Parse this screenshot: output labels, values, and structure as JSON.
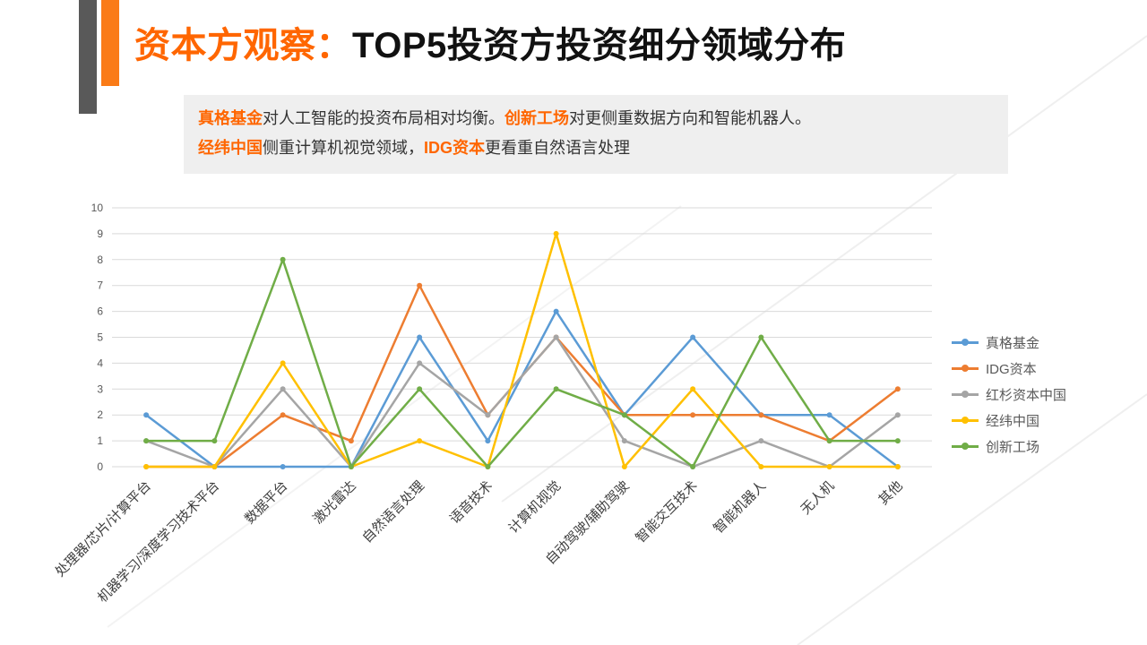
{
  "slide": {
    "title": {
      "highlight": "资本方观察：",
      "rest": "TOP5投资方投资细分领域分布"
    },
    "subtitle": {
      "line1": [
        {
          "text": "真格基金",
          "highlight": true
        },
        {
          "text": "对人工智能的投资布局相对均衡。",
          "highlight": false
        },
        {
          "text": "创新工场",
          "highlight": true
        },
        {
          "text": "对更侧重数据方向和智能机器人。",
          "highlight": false
        }
      ],
      "line2": [
        {
          "text": "经纬中国",
          "highlight": true
        },
        {
          "text": "侧重计算机视觉领域，",
          "highlight": false
        },
        {
          "text": "IDG资本",
          "highlight": true
        },
        {
          "text": "更看重自然语言处理",
          "highlight": false
        }
      ]
    }
  },
  "colors": {
    "accent_orange": "#FF6600",
    "deco_gray": "#595959",
    "deco_orange": "#FA7B17",
    "subtitle_bg": "#EFEFEF",
    "gridline": "#D9D9D9",
    "axis_text": "#595959",
    "category_text": "#404040"
  },
  "chart_data": {
    "type": "line",
    "title": "",
    "xlabel": "",
    "ylabel": "",
    "ylim": [
      0,
      10
    ],
    "ytick_step": 1,
    "grid": true,
    "legend_position": "right",
    "categories": [
      "处理器/芯片/计算平台",
      "机器学习/深度学习技术平台",
      "数据平台",
      "激光雷达",
      "自然语言处理",
      "语音技术",
      "计算机视觉",
      "自动驾驶/辅助驾驶",
      "智能交互技术",
      "智能机器人",
      "无人机",
      "其他"
    ],
    "series": [
      {
        "name": "真格基金",
        "color": "#5B9BD5",
        "values": [
          2,
          0,
          0,
          0,
          5,
          1,
          6,
          2,
          5,
          2,
          2,
          0
        ]
      },
      {
        "name": "IDG资本",
        "color": "#ED7D31",
        "values": [
          0,
          0,
          2,
          1,
          7,
          2,
          5,
          2,
          2,
          2,
          1,
          3
        ]
      },
      {
        "name": "红杉资本中国",
        "color": "#A5A5A5",
        "values": [
          1,
          0,
          3,
          0,
          4,
          2,
          5,
          1,
          0,
          1,
          0,
          2
        ]
      },
      {
        "name": "经纬中国",
        "color": "#FFC000",
        "values": [
          0,
          0,
          4,
          0,
          1,
          0,
          9,
          0,
          3,
          0,
          0,
          0
        ]
      },
      {
        "name": "创新工场",
        "color": "#70AD47",
        "values": [
          1,
          1,
          8,
          0,
          3,
          0,
          3,
          2,
          0,
          5,
          1,
          1
        ]
      }
    ]
  }
}
